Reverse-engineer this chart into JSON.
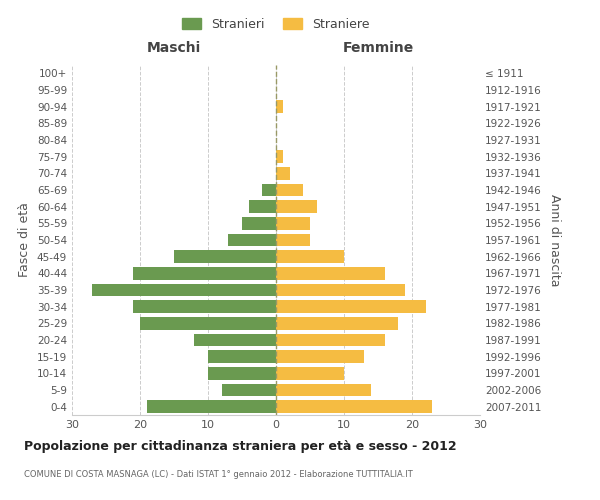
{
  "age_groups": [
    "0-4",
    "5-9",
    "10-14",
    "15-19",
    "20-24",
    "25-29",
    "30-34",
    "35-39",
    "40-44",
    "45-49",
    "50-54",
    "55-59",
    "60-64",
    "65-69",
    "70-74",
    "75-79",
    "80-84",
    "85-89",
    "90-94",
    "95-99",
    "100+"
  ],
  "birth_years": [
    "2007-2011",
    "2002-2006",
    "1997-2001",
    "1992-1996",
    "1987-1991",
    "1982-1986",
    "1977-1981",
    "1972-1976",
    "1967-1971",
    "1962-1966",
    "1957-1961",
    "1952-1956",
    "1947-1951",
    "1942-1946",
    "1937-1941",
    "1932-1936",
    "1927-1931",
    "1922-1926",
    "1917-1921",
    "1912-1916",
    "≤ 1911"
  ],
  "males": [
    19,
    8,
    10,
    10,
    12,
    20,
    21,
    27,
    21,
    15,
    7,
    5,
    4,
    2,
    0,
    0,
    0,
    0,
    0,
    0,
    0
  ],
  "females": [
    23,
    14,
    10,
    13,
    16,
    18,
    22,
    19,
    16,
    10,
    5,
    5,
    6,
    4,
    2,
    1,
    0,
    0,
    1,
    0,
    0
  ],
  "male_color": "#6a9a50",
  "female_color": "#f5bc42",
  "male_label": "Stranieri",
  "female_label": "Straniere",
  "title": "Popolazione per cittadinanza straniera per età e sesso - 2012",
  "subtitle": "COMUNE DI COSTA MASNAGA (LC) - Dati ISTAT 1° gennaio 2012 - Elaborazione TUTTITALIA.IT",
  "xlabel_left": "Maschi",
  "xlabel_right": "Femmine",
  "ylabel_left": "Fasce di età",
  "ylabel_right": "Anni di nascita",
  "xlim": 30,
  "background_color": "#ffffff",
  "grid_color": "#cccccc"
}
